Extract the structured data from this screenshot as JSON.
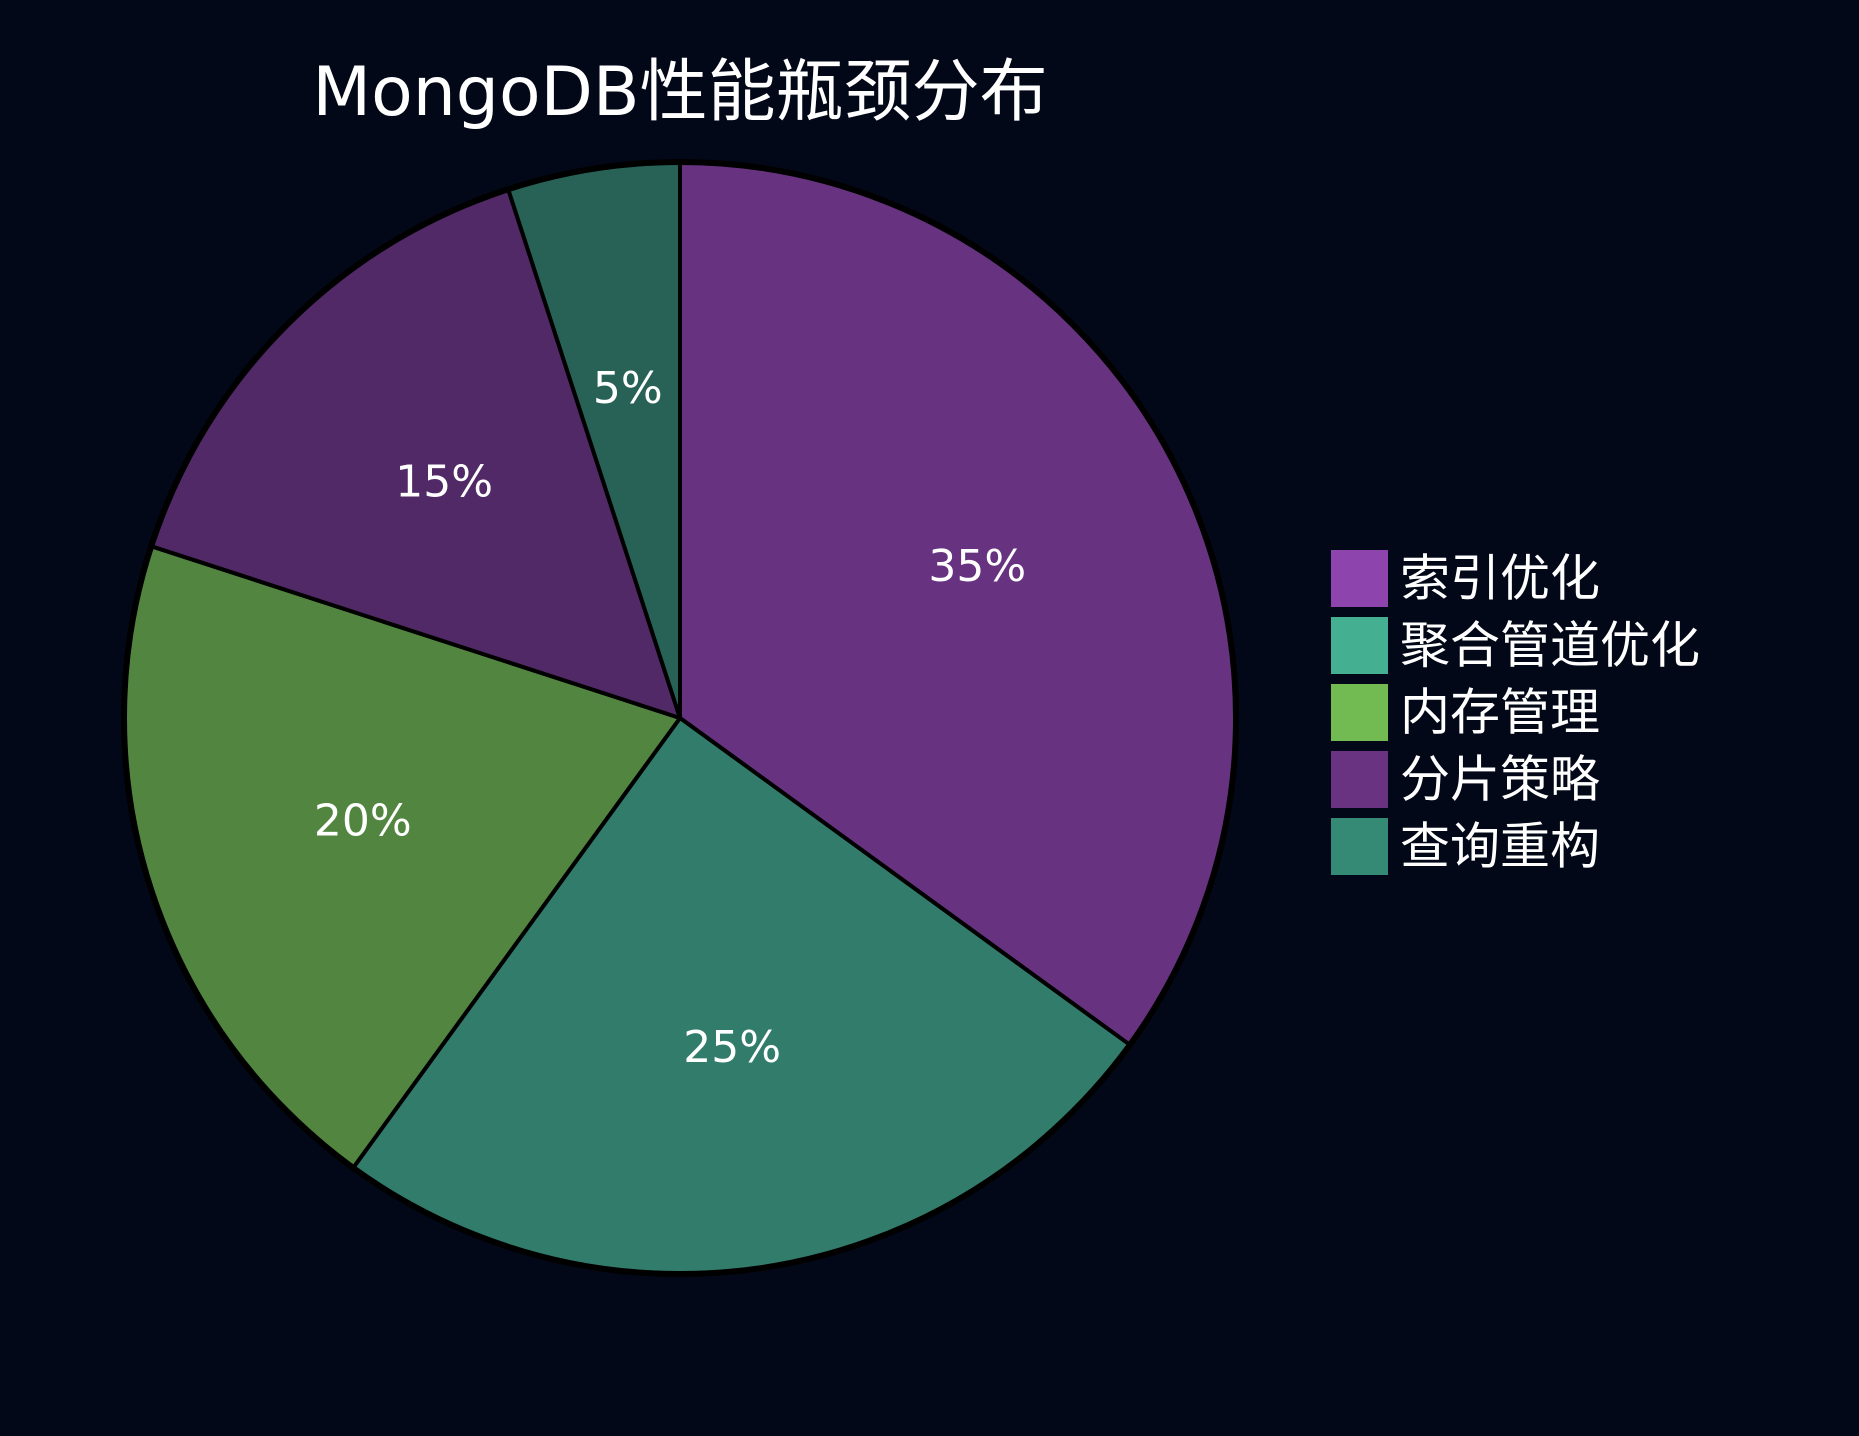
{
  "chart_data": {
    "type": "pie",
    "title": "MongoDB性能瓶颈分布",
    "categories": [
      "索引优化",
      "聚合管道优化",
      "内存管理",
      "分片策略",
      "查询重构"
    ],
    "values": [
      35,
      25,
      20,
      15,
      5
    ],
    "value_labels": [
      "35%",
      "25%",
      "20%",
      "15%",
      "5%"
    ],
    "unit": "%",
    "start_angle": "12 o'clock",
    "direction": "clockwise",
    "legend_position": "right",
    "colors": {
      "slices": [
        "#673380",
        "#327C6C",
        "#528640",
        "#512966",
        "#286256"
      ],
      "legend_swatches": [
        "#8E44AD",
        "#45AF91",
        "#72BB53",
        "#6A3382",
        "#348A74"
      ],
      "slice_outline": "#000000",
      "background": "#020817",
      "text": "#ffffff"
    }
  }
}
